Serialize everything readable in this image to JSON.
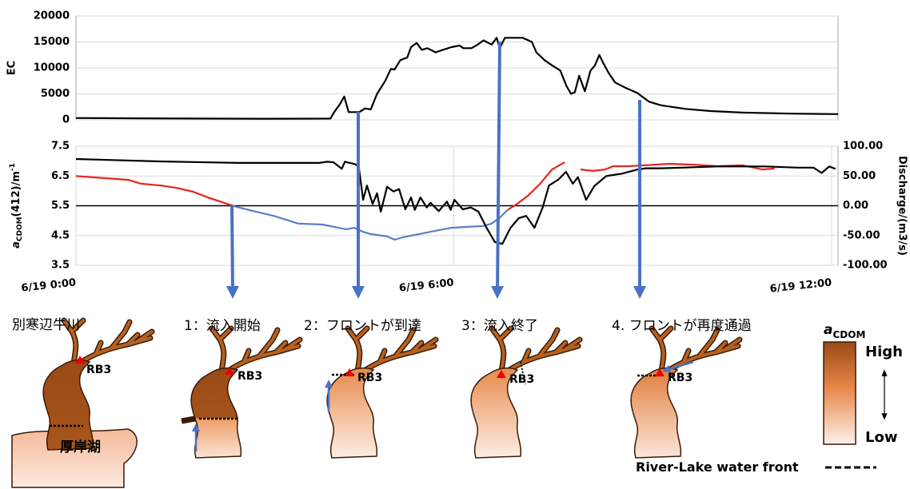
{
  "chart_data": [
    {
      "type": "line",
      "y_label": "EC",
      "xlim": [
        0,
        12.1
      ],
      "ylim": [
        0,
        20000
      ],
      "yticks": [
        0,
        5000,
        10000,
        15000,
        20000
      ],
      "grid": true,
      "series": [
        {
          "color": "#000000",
          "x": [
            0,
            1,
            2,
            3,
            4.04,
            4.1,
            4.19,
            4.26,
            4.33,
            4.5,
            4.59,
            4.68,
            4.78,
            4.91,
            5.0,
            5.06,
            5.15,
            5.26,
            5.32,
            5.41,
            5.49,
            5.58,
            5.71,
            5.83,
            5.96,
            6.09,
            6.15,
            6.28,
            6.38,
            6.47,
            6.6,
            6.68,
            6.73,
            6.81,
            6.99,
            7.09,
            7.24,
            7.31,
            7.44,
            7.56,
            7.69,
            7.79,
            7.86,
            7.92,
            7.99,
            8.08,
            8.17,
            8.24,
            8.31,
            8.37,
            8.46,
            8.56,
            8.72,
            8.91,
            9.1,
            9.29,
            9.68,
            10.06,
            10.58,
            11.35,
            12.1
          ],
          "values": [
            350,
            300,
            250,
            220,
            250,
            1500,
            3000,
            4500,
            1500,
            1500,
            2200,
            2000,
            5000,
            7500,
            9800,
            9700,
            11500,
            12000,
            14000,
            14800,
            13500,
            13800,
            13000,
            13500,
            14000,
            14300,
            13800,
            13800,
            14500,
            15300,
            14500,
            15800,
            13800,
            15800,
            15800,
            15800,
            15000,
            13000,
            11500,
            10500,
            9500,
            6500,
            5000,
            5300,
            8500,
            5500,
            9500,
            10500,
            12500,
            11000,
            9000,
            7200,
            6200,
            5200,
            3500,
            2800,
            2100,
            1700,
            1400,
            1200,
            1100
          ]
        }
      ]
    },
    {
      "type": "line",
      "y_label": {
        "main": "a",
        "sub": "CDOM",
        "rest": "(412)/m",
        "sup": "-1"
      },
      "y2_label": "Discharge/(m3/s)",
      "xlim": [
        0,
        12.1
      ],
      "xticks": [
        {
          "value": 0,
          "label": "6/19 0:00"
        },
        {
          "value": 6,
          "label": "6/19 6:00"
        },
        {
          "value": 12,
          "label": "6/19 12:00"
        }
      ],
      "ylim": [
        3.5,
        7.5
      ],
      "yticks": [
        3.5,
        4.5,
        5.5,
        6.5,
        7.5
      ],
      "y2lim": [
        -100,
        100
      ],
      "y2ticks": [
        {
          "value": 100,
          "label": "100.00"
        },
        {
          "value": 50,
          "label": "50.00"
        },
        {
          "value": 0,
          "label": "0.00"
        },
        {
          "value": -50,
          "label": "-50.00"
        },
        {
          "value": -100,
          "label": "-100.00"
        }
      ],
      "grid": true,
      "zero_line": true,
      "series": [
        {
          "color": "#e8231f",
          "x": [
            0,
            0.45,
            0.83,
            1.03,
            1.35,
            1.6,
            1.86,
            2.12,
            2.31,
            2.5,
            4.0,
            6.86,
            6.99,
            7.18,
            7.37,
            7.56,
            7.76,
            7.9,
            8.01,
            8.21,
            8.4,
            8.53,
            8.78,
            9.04,
            9.42,
            9.81,
            10.19,
            10.58,
            10.9,
            11.09
          ],
          "values": [
            6.5,
            6.43,
            6.37,
            6.24,
            6.18,
            6.1,
            5.97,
            5.76,
            5.63,
            5.49,
            null,
            5.37,
            5.54,
            5.84,
            6.24,
            6.72,
            6.96,
            null,
            6.72,
            6.67,
            6.72,
            6.83,
            6.83,
            6.86,
            6.91,
            6.88,
            6.83,
            6.86,
            6.72,
            6.75
          ]
        },
        {
          "color": "#5b7fc7",
          "x": [
            2.5,
            2.76,
            3.14,
            3.53,
            3.91,
            4.17,
            4.29,
            4.42,
            4.55,
            4.68,
            4.94,
            5.06,
            5.19,
            5.45,
            5.71,
            5.96,
            6.22,
            6.47,
            6.6,
            6.73,
            6.86
          ],
          "values": [
            5.49,
            5.35,
            5.16,
            4.9,
            4.87,
            4.76,
            4.71,
            4.76,
            4.63,
            4.55,
            4.47,
            4.36,
            4.44,
            4.55,
            4.66,
            4.76,
            4.79,
            4.82,
            4.9,
            5.1,
            5.37
          ]
        },
        {
          "color": "#000000",
          "axis": "y2",
          "x": [
            0,
            1.33,
            2.59,
            3.86,
            3.99,
            4.09,
            4.22,
            4.27,
            4.43,
            4.49,
            4.56,
            4.62,
            4.71,
            4.78,
            4.84,
            4.94,
            5.04,
            5.13,
            5.23,
            5.32,
            5.38,
            5.47,
            5.57,
            5.63,
            5.76,
            5.89,
            5.95,
            6.01,
            6.14,
            6.27,
            6.39,
            6.52,
            6.65,
            6.77,
            6.9,
            7.03,
            7.15,
            7.28,
            7.41,
            7.51,
            7.66,
            7.78,
            7.89,
            7.97,
            8.1,
            8.23,
            8.42,
            8.67,
            8.92,
            9.05,
            9.3,
            10.19,
            10.95,
            11.46,
            11.71,
            11.84,
            11.96,
            12.06
          ],
          "values": [
            78.5,
            74.5,
            72,
            72,
            74,
            73,
            62,
            74,
            70,
            66,
            10,
            34,
            3,
            21,
            -10,
            32,
            24,
            28,
            -6,
            14,
            -7,
            14,
            -3,
            5,
            -9,
            7,
            -7,
            10,
            -6,
            -3,
            -10,
            -37,
            -61,
            -64,
            -37,
            -21,
            -17,
            -37,
            -3,
            34,
            44,
            57,
            37,
            48,
            10,
            33,
            50,
            54,
            61,
            63,
            63,
            66,
            66,
            64,
            64,
            55,
            66,
            62
          ]
        }
      ]
    }
  ],
  "diagram": {
    "river_name": "別寒辺牛川",
    "lake_name": "厚岸湖",
    "station": "RB3",
    "panels": [
      "1：流入開始",
      "2：フロントが到達",
      "3：流入終了",
      "4.  フロントが再度通過"
    ],
    "legend": {
      "title_main": "a",
      "title_sub": "CDOM",
      "high": "High",
      "low": "Low"
    },
    "front_label": "River-Lake water front"
  }
}
